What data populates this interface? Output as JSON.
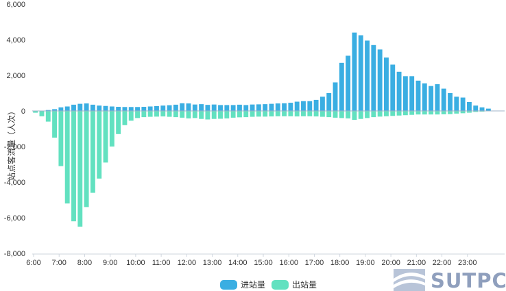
{
  "chart_data": {
    "type": "bar",
    "title": "",
    "xlabel": "",
    "ylabel": "站点客流量（人次）",
    "ylim": [
      -8000,
      6000
    ],
    "yticks": [
      6000,
      4000,
      2000,
      0,
      -2000,
      -4000,
      -6000,
      -8000
    ],
    "ytick_labels": [
      "6,000",
      "4,000",
      "2,000",
      "0",
      "-2,000",
      "-4,000",
      "-6,000",
      "-8,000"
    ],
    "xticks": [
      "6:00",
      "7:00",
      "8:00",
      "9:00",
      "10:00",
      "11:00",
      "12:00",
      "13:00",
      "14:00",
      "15:00",
      "16:00",
      "17:00",
      "18:00",
      "19:00",
      "20:00",
      "21:00",
      "22:00",
      "23:00"
    ],
    "interval": "15 min",
    "start": "6:00",
    "legend_position": "bottom-center",
    "grid": false,
    "series": [
      {
        "name": "进站量",
        "color": "#3aaee2",
        "values": [
          0,
          0,
          50,
          100,
          200,
          250,
          350,
          400,
          420,
          350,
          300,
          280,
          250,
          230,
          220,
          220,
          220,
          230,
          250,
          270,
          300,
          320,
          350,
          430,
          420,
          360,
          380,
          340,
          360,
          330,
          330,
          330,
          350,
          330,
          360,
          370,
          380,
          400,
          420,
          430,
          460,
          520,
          550,
          550,
          620,
          800,
          1000,
          1600,
          2700,
          3100,
          4400,
          4250,
          3950,
          3700,
          3450,
          3000,
          2600,
          2200,
          1950,
          1950,
          1700,
          1550,
          1400,
          1500,
          1250,
          1000,
          800,
          750,
          500,
          300,
          200,
          130
        ]
      },
      {
        "name": "出站量",
        "color": "#62e1c0",
        "values": [
          -100,
          -300,
          -600,
          -1500,
          -3100,
          -5200,
          -6200,
          -6500,
          -5400,
          -4600,
          -3800,
          -2900,
          -2000,
          -1300,
          -800,
          -550,
          -400,
          -350,
          -330,
          -320,
          -310,
          -330,
          -350,
          -380,
          -420,
          -400,
          -450,
          -480,
          -450,
          -440,
          -420,
          -380,
          -360,
          -350,
          -330,
          -320,
          -320,
          -310,
          -300,
          -300,
          -300,
          -310,
          -300,
          -300,
          -310,
          -330,
          -350,
          -380,
          -400,
          -420,
          -500,
          -450,
          -400,
          -350,
          -320,
          -300,
          -280,
          -260,
          -240,
          -220,
          -200,
          -200,
          -200,
          -200,
          -190,
          -180,
          -150,
          -130,
          -100,
          -60,
          -40,
          -20
        ]
      }
    ]
  },
  "logo": {
    "text": "SUTPC"
  }
}
